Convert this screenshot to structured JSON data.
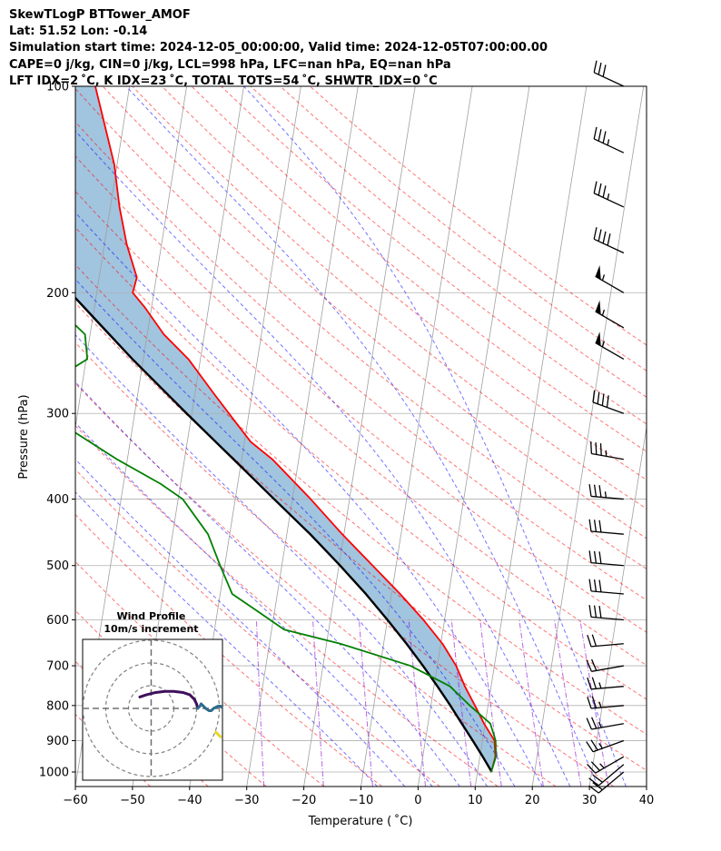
{
  "header": {
    "line1": "SkewTLogP BTTower_AMOF",
    "line2": "Lat: 51.52   Lon: -0.14",
    "line3": "Simulation start time: 2024-12-05_00:00:00, Valid time: 2024-12-05T07:00:00.00",
    "line4": "CAPE=0 j/kg, CIN=0 j/kg, LCL=998 hPa, LFC=nan hPa, EQ=nan hPa",
    "line5": "LFT IDX=2$^\\circ$C, K IDX=23$^\\circ$C, TOTAL TOTS=54$^\\circ$C, SHWTR_IDX=0$^\\circ$C"
  },
  "chart_data": {
    "type": "skewt",
    "xlabel": "Temperature ($^\\circ$C)",
    "ylabel": "Pressure (hPa)",
    "xlim": [
      -60,
      40
    ],
    "ylim": [
      1050,
      100
    ],
    "y_scale": "log",
    "x_ticks": [
      -60,
      -50,
      -40,
      -30,
      -20,
      -10,
      0,
      10,
      20,
      30,
      40
    ],
    "x_tick_labels": [
      "−60",
      "−50",
      "−40",
      "−30",
      "−20",
      "−10",
      "0",
      "10",
      "20",
      "30",
      "40"
    ],
    "y_ticks": [
      1000,
      900,
      800,
      700,
      600,
      500,
      400,
      300,
      200,
      100
    ],
    "y_tick_labels": [
      "1000",
      "900",
      "800",
      "700",
      "600",
      "500",
      "400",
      "300",
      "200",
      "100"
    ],
    "grid": true,
    "colors": {
      "temperature": "#ff0000",
      "dewpoint": "#008000",
      "parcel": "#000000",
      "cape_fill": "#a1c4df",
      "dry_adiabats": "#ff0000",
      "moist_adiabats": "#0000ff",
      "mixing_ratio": "#8b00d0",
      "isotherms": "#808080"
    },
    "temperature": {
      "p": [
        1000,
        950,
        900,
        850,
        800,
        750,
        700,
        650,
        600,
        550,
        500,
        450,
        400,
        350,
        330,
        300,
        280,
        250,
        230,
        210,
        200,
        190,
        170,
        150,
        130,
        110,
        100
      ],
      "t": [
        12.4,
        12.7,
        12.1,
        9.8,
        7.7,
        5.4,
        3.3,
        0.3,
        -3.7,
        -8.5,
        -14.1,
        -20.3,
        -26.8,
        -34.6,
        -38.9,
        -43.5,
        -46.8,
        -52.1,
        -57.1,
        -61.2,
        -63.7,
        -63.4,
        -66.1,
        -68.4,
        -70.5,
        -74.0,
        -76.0
      ]
    },
    "dewpoint": {
      "p": [
        1000,
        950,
        900,
        850,
        800,
        750,
        700,
        650,
        620,
        580,
        550,
        500,
        450,
        400,
        380,
        350,
        310,
        290,
        270,
        250,
        230,
        210,
        200,
        185,
        170,
        150,
        130,
        110,
        100
      ],
      "td": [
        12.4,
        12.8,
        12.3,
        10.9,
        6.8,
        2.8,
        -4.7,
        -17.6,
        -27.8,
        -33.4,
        -37.9,
        -40.8,
        -43.8,
        -49.2,
        -53.5,
        -61.8,
        -72.7,
        -80.1,
        -75.7,
        -69.8,
        -70.9,
        -76.6,
        -79.8,
        -82.2,
        -82.0,
        -82.5,
        -84.0,
        -87.1,
        -90.2
      ]
    },
    "parcel": {
      "p": [
        1000,
        950,
        900,
        850,
        800,
        750,
        700,
        650,
        600,
        550,
        500,
        450,
        400,
        350,
        300,
        250,
        200,
        150,
        100
      ],
      "t": [
        12.5,
        10.5,
        8.3,
        5.9,
        3.4,
        0.6,
        -2.5,
        -6.0,
        -10.0,
        -14.5,
        -19.8,
        -25.9,
        -33.2,
        -41.4,
        -50.9,
        -61.9,
        -74.6,
        -89.9,
        -109.8
      ]
    },
    "cape_shading": "between temperature and parcel, 1000-100 hPa",
    "dry_adiabats_theta_C": [
      -50,
      -40,
      -30,
      -20,
      -10,
      0,
      10,
      20,
      30,
      40,
      50,
      60,
      70,
      80,
      90,
      100,
      110,
      120,
      130,
      140,
      150,
      160,
      170,
      180
    ],
    "moist_adiabats_T1000_C": [
      -10,
      -5,
      0,
      5,
      10,
      15,
      20,
      25,
      30,
      35
    ],
    "mixing_ratio_lines_gkg": [
      0.4,
      1.0,
      2.0,
      4.0,
      7.0,
      10.0,
      16.0,
      24.0,
      32.0
    ],
    "wind_barbs": {
      "x_position_C": 36,
      "p": [
        1000,
        975,
        950,
        900,
        850,
        800,
        750,
        700,
        650,
        600,
        550,
        500,
        450,
        400,
        350,
        300,
        250,
        225,
        200,
        175,
        150,
        125,
        100
      ],
      "speed_kt": [
        20,
        20,
        25,
        25,
        25,
        25,
        25,
        20,
        20,
        30,
        30,
        30,
        30,
        35,
        35,
        40,
        55,
        55,
        55,
        40,
        35,
        35,
        30
      ],
      "direction_deg": [
        230,
        230,
        240,
        250,
        260,
        265,
        265,
        260,
        265,
        275,
        275,
        275,
        275,
        275,
        280,
        290,
        300,
        300,
        300,
        295,
        295,
        295,
        295
      ]
    },
    "hodograph": {
      "title": "Wind Profile",
      "subtitle": "10m/s increment",
      "rings_ms": [
        10,
        20,
        30
      ],
      "segments": [
        {
          "color": "#3f0f5b",
          "u": [
            -5,
            -2,
            2,
            6,
            10,
            14,
            17,
            19,
            20,
            20.5
          ],
          "v": [
            5,
            6,
            7,
            7.5,
            7.5,
            7,
            6,
            4,
            2,
            0
          ]
        },
        {
          "color": "#2e6b8e",
          "u": [
            20.5,
            21.5,
            22,
            23,
            24,
            25.5,
            26.5,
            27.5,
            28.5,
            29.5,
            30.5,
            31
          ],
          "v": [
            0,
            1,
            2,
            1,
            0,
            -1,
            -1,
            0,
            0.5,
            1,
            1,
            0.5
          ]
        },
        {
          "color": "#e8d824",
          "u": [
            28.5,
            29.5,
            30.5
          ],
          "v": [
            -10.5,
            -11.5,
            -12.5
          ]
        }
      ]
    }
  }
}
